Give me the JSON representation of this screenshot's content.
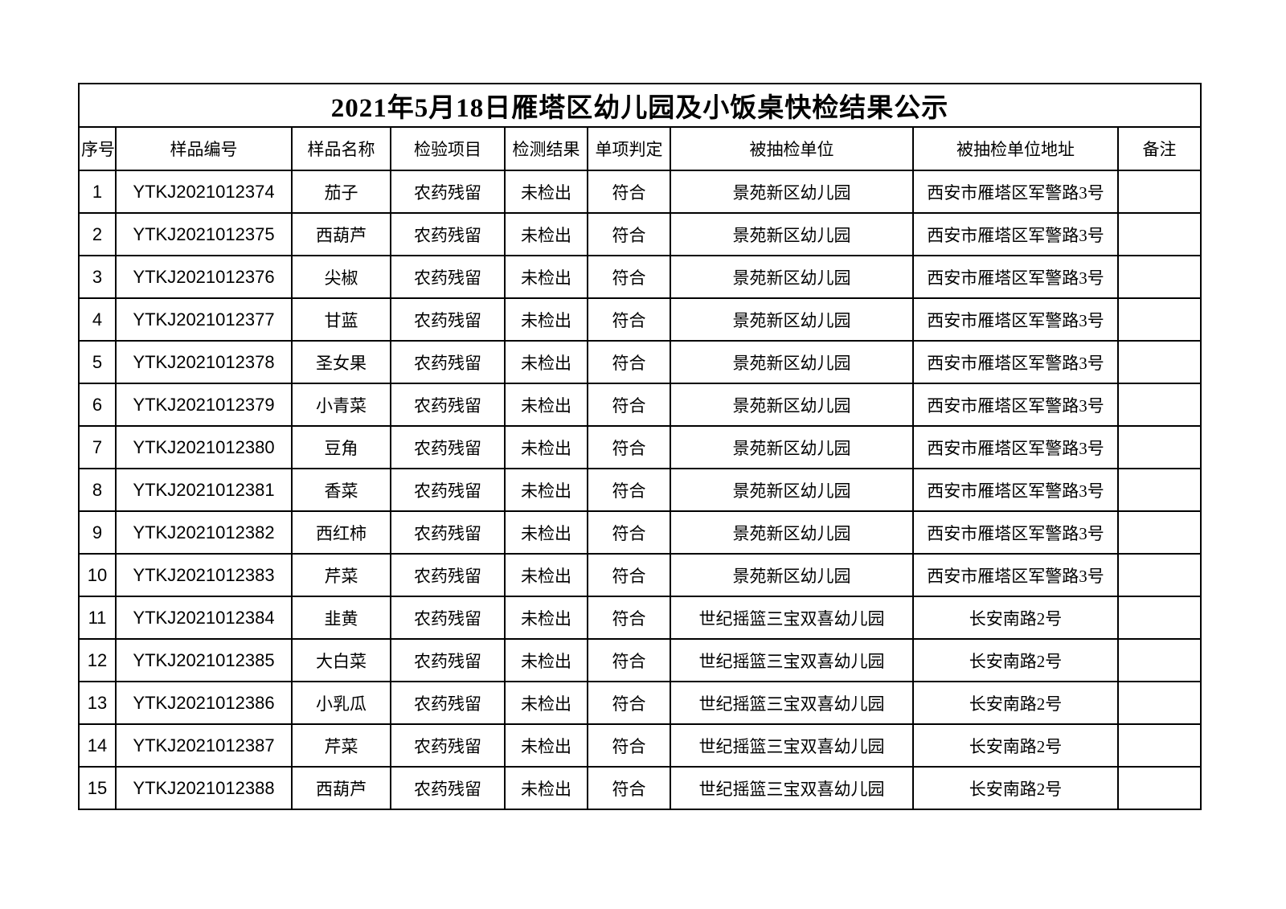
{
  "page": {
    "background_color": "#ffffff",
    "border_color": "#000000",
    "text_color": "#000000"
  },
  "table": {
    "title": "2021年5月18日雁塔区幼儿园及小饭桌快检结果公示",
    "columns": [
      "序号",
      "样品编号",
      "样品名称",
      "检验项目",
      "检测结果",
      "单项判定",
      "被抽检单位",
      "被抽检单位地址",
      "备注"
    ],
    "rows": [
      {
        "no": "1",
        "sample_id": "YTKJ2021012374",
        "sample_name": "茄子",
        "test_item": "农药残留",
        "test_result": "未检出",
        "judgment": "符合",
        "unit": "景苑新区幼儿园",
        "address": "西安市雁塔区军警路3号",
        "remark": ""
      },
      {
        "no": "2",
        "sample_id": "YTKJ2021012375",
        "sample_name": "西葫芦",
        "test_item": "农药残留",
        "test_result": "未检出",
        "judgment": "符合",
        "unit": "景苑新区幼儿园",
        "address": "西安市雁塔区军警路3号",
        "remark": ""
      },
      {
        "no": "3",
        "sample_id": "YTKJ2021012376",
        "sample_name": "尖椒",
        "test_item": "农药残留",
        "test_result": "未检出",
        "judgment": "符合",
        "unit": "景苑新区幼儿园",
        "address": "西安市雁塔区军警路3号",
        "remark": ""
      },
      {
        "no": "4",
        "sample_id": "YTKJ2021012377",
        "sample_name": "甘蓝",
        "test_item": "农药残留",
        "test_result": "未检出",
        "judgment": "符合",
        "unit": "景苑新区幼儿园",
        "address": "西安市雁塔区军警路3号",
        "remark": ""
      },
      {
        "no": "5",
        "sample_id": "YTKJ2021012378",
        "sample_name": "圣女果",
        "test_item": "农药残留",
        "test_result": "未检出",
        "judgment": "符合",
        "unit": "景苑新区幼儿园",
        "address": "西安市雁塔区军警路3号",
        "remark": ""
      },
      {
        "no": "6",
        "sample_id": "YTKJ2021012379",
        "sample_name": "小青菜",
        "test_item": "农药残留",
        "test_result": "未检出",
        "judgment": "符合",
        "unit": "景苑新区幼儿园",
        "address": "西安市雁塔区军警路3号",
        "remark": ""
      },
      {
        "no": "7",
        "sample_id": "YTKJ2021012380",
        "sample_name": "豆角",
        "test_item": "农药残留",
        "test_result": "未检出",
        "judgment": "符合",
        "unit": "景苑新区幼儿园",
        "address": "西安市雁塔区军警路3号",
        "remark": ""
      },
      {
        "no": "8",
        "sample_id": "YTKJ2021012381",
        "sample_name": "香菜",
        "test_item": "农药残留",
        "test_result": "未检出",
        "judgment": "符合",
        "unit": "景苑新区幼儿园",
        "address": "西安市雁塔区军警路3号",
        "remark": ""
      },
      {
        "no": "9",
        "sample_id": "YTKJ2021012382",
        "sample_name": "西红柿",
        "test_item": "农药残留",
        "test_result": "未检出",
        "judgment": "符合",
        "unit": "景苑新区幼儿园",
        "address": "西安市雁塔区军警路3号",
        "remark": ""
      },
      {
        "no": "10",
        "sample_id": "YTKJ2021012383",
        "sample_name": "芹菜",
        "test_item": "农药残留",
        "test_result": "未检出",
        "judgment": "符合",
        "unit": "景苑新区幼儿园",
        "address": "西安市雁塔区军警路3号",
        "remark": ""
      },
      {
        "no": "11",
        "sample_id": "YTKJ2021012384",
        "sample_name": "韭黄",
        "test_item": "农药残留",
        "test_result": "未检出",
        "judgment": "符合",
        "unit": "世纪摇篮三宝双喜幼儿园",
        "address": "长安南路2号",
        "remark": ""
      },
      {
        "no": "12",
        "sample_id": "YTKJ2021012385",
        "sample_name": "大白菜",
        "test_item": "农药残留",
        "test_result": "未检出",
        "judgment": "符合",
        "unit": "世纪摇篮三宝双喜幼儿园",
        "address": "长安南路2号",
        "remark": ""
      },
      {
        "no": "13",
        "sample_id": "YTKJ2021012386",
        "sample_name": "小乳瓜",
        "test_item": "农药残留",
        "test_result": "未检出",
        "judgment": "符合",
        "unit": "世纪摇篮三宝双喜幼儿园",
        "address": "长安南路2号",
        "remark": ""
      },
      {
        "no": "14",
        "sample_id": "YTKJ2021012387",
        "sample_name": "芹菜",
        "test_item": "农药残留",
        "test_result": "未检出",
        "judgment": "符合",
        "unit": "世纪摇篮三宝双喜幼儿园",
        "address": "长安南路2号",
        "remark": ""
      },
      {
        "no": "15",
        "sample_id": "YTKJ2021012388",
        "sample_name": "西葫芦",
        "test_item": "农药残留",
        "test_result": "未检出",
        "judgment": "符合",
        "unit": "世纪摇篮三宝双喜幼儿园",
        "address": "长安南路2号",
        "remark": ""
      }
    ]
  }
}
